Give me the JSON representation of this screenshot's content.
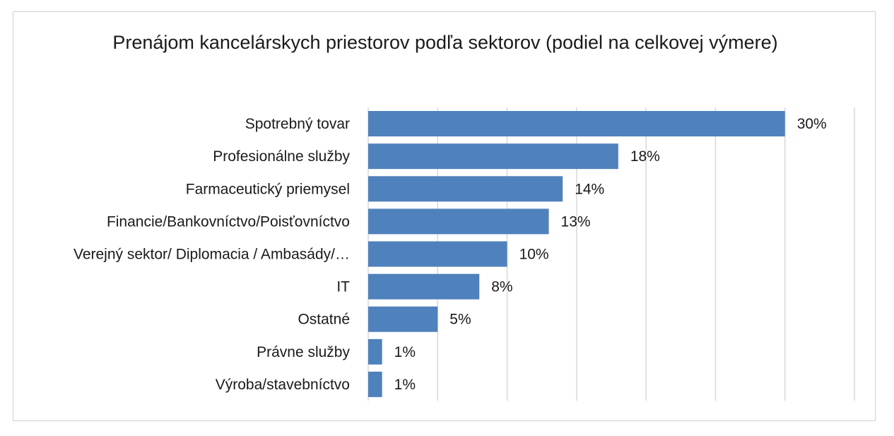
{
  "chart_data": {
    "type": "bar",
    "orientation": "horizontal",
    "title": "Prenájom kancelárskych priestorov podľa sektorov (podiel na celkovej výmere)",
    "categories": [
      "Spotrebný tovar",
      "Profesionálne služby",
      "Farmaceutický priemysel",
      "Financie/Bankovníctvo/Poisťovníctvo",
      "Verejný sektor/ Diplomacia / Ambasády/…",
      "IT",
      "Ostatné",
      "Právne služby",
      "Výroba/stavebníctvo"
    ],
    "values": [
      30,
      18,
      14,
      13,
      10,
      8,
      5,
      1,
      1
    ],
    "value_labels": [
      "30%",
      "18%",
      "14%",
      "13%",
      "10%",
      "8%",
      "5%",
      "1%",
      "1%"
    ],
    "xlim": [
      0,
      35
    ],
    "grid": true,
    "legend": "none",
    "bar_color": "#4f81bd"
  }
}
